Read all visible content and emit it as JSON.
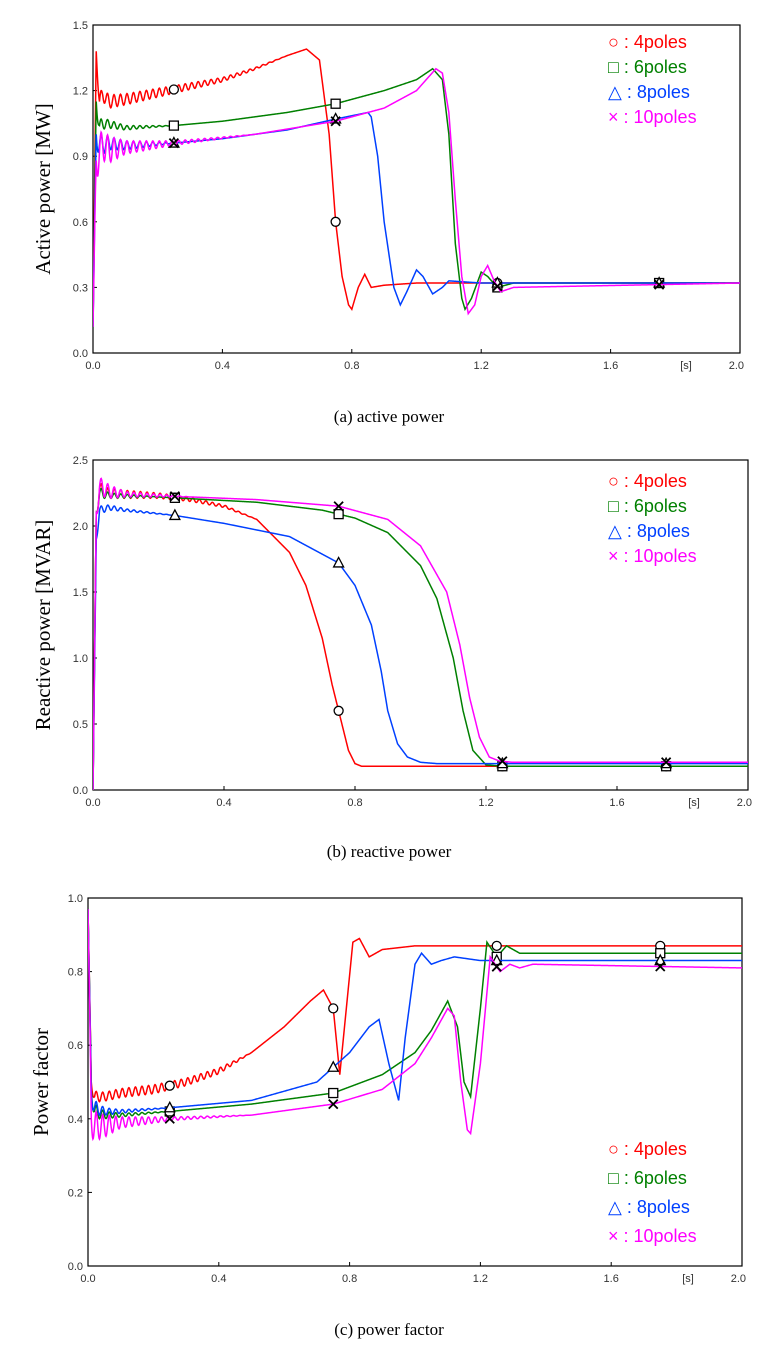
{
  "colors": {
    "4poles": "#ff0000",
    "6poles": "#008000",
    "8poles": "#0040ff",
    "10poles": "#ff00ff"
  },
  "chart_data": [
    {
      "type": "line",
      "caption": "(a) active power",
      "ylabel": "Active power [MW]",
      "xunit": "[s]",
      "xlim": [
        0,
        2.0
      ],
      "ylim": [
        0,
        1.5
      ],
      "xticks": [
        "0.0",
        "0.4",
        "0.8",
        "1.2",
        "1.6",
        "2.0"
      ],
      "yticks": [
        "0.0",
        "0.3",
        "0.6",
        "0.9",
        "1.2",
        "1.5"
      ],
      "legend": [
        "○ : 4poles",
        "□ : 6poles",
        "△ : 8poles",
        "× : 10poles"
      ],
      "series": [
        {
          "name": "4poles",
          "color": "#ff0000",
          "marker": "circle",
          "x": [
            0,
            0.01,
            0.02,
            0.03,
            0.05,
            0.1,
            0.2,
            0.3,
            0.4,
            0.5,
            0.6,
            0.66,
            0.7,
            0.73,
            0.75,
            0.77,
            0.79,
            0.8,
            0.82,
            0.84,
            0.86,
            0.9,
            1.0,
            2.0
          ],
          "y": [
            0.12,
            1.38,
            1.15,
            1.18,
            1.15,
            1.16,
            1.19,
            1.22,
            1.25,
            1.3,
            1.36,
            1.39,
            1.34,
            1.0,
            0.6,
            0.35,
            0.22,
            0.2,
            0.3,
            0.36,
            0.3,
            0.31,
            0.32,
            0.32
          ],
          "osc": [
            0,
            0.03,
            0.04,
            0.03,
            0.03,
            0.025,
            0.02,
            0.015,
            0.01,
            0.005,
            0,
            0,
            0,
            0,
            0,
            0,
            0,
            0,
            0,
            0,
            0,
            0,
            0,
            0
          ],
          "marker_x": [
            0.25,
            0.75,
            1.25,
            1.75
          ]
        },
        {
          "name": "6poles",
          "color": "#008000",
          "marker": "square",
          "x": [
            0,
            0.01,
            0.02,
            0.04,
            0.1,
            0.25,
            0.4,
            0.6,
            0.75,
            0.9,
            1.0,
            1.05,
            1.08,
            1.1,
            1.12,
            1.14,
            1.15,
            1.17,
            1.2,
            1.22,
            1.25,
            1.3,
            2.0
          ],
          "y": [
            0.12,
            1.15,
            1.04,
            1.05,
            1.03,
            1.04,
            1.06,
            1.1,
            1.14,
            1.2,
            1.25,
            1.3,
            1.25,
            1.0,
            0.5,
            0.25,
            0.2,
            0.25,
            0.37,
            0.35,
            0.3,
            0.32,
            0.32
          ],
          "osc": [
            0,
            0.05,
            0.03,
            0.02,
            0.01,
            0,
            0,
            0,
            0,
            0,
            0,
            0,
            0,
            0,
            0,
            0,
            0,
            0,
            0,
            0,
            0,
            0,
            0
          ],
          "marker_x": [
            0.25,
            0.75,
            1.25,
            1.75
          ]
        },
        {
          "name": "8poles",
          "color": "#0040ff",
          "marker": "triangle",
          "x": [
            0,
            0.01,
            0.02,
            0.05,
            0.1,
            0.25,
            0.4,
            0.6,
            0.75,
            0.85,
            0.86,
            0.88,
            0.9,
            0.93,
            0.95,
            0.97,
            1.0,
            1.02,
            1.05,
            1.08,
            1.1,
            1.2,
            2.0
          ],
          "y": [
            0.12,
            1.0,
            0.95,
            0.96,
            0.95,
            0.96,
            0.98,
            1.02,
            1.07,
            1.1,
            1.08,
            0.9,
            0.6,
            0.3,
            0.22,
            0.28,
            0.38,
            0.35,
            0.27,
            0.3,
            0.33,
            0.32,
            0.32
          ],
          "osc": [
            0,
            0.06,
            0.05,
            0.03,
            0.02,
            0,
            0,
            0,
            0,
            0,
            0,
            0,
            0,
            0,
            0,
            0,
            0,
            0,
            0,
            0,
            0,
            0,
            0
          ],
          "marker_x": [
            0.25,
            0.75,
            1.25,
            1.75
          ]
        },
        {
          "name": "10poles",
          "color": "#ff00ff",
          "marker": "x",
          "x": [
            0,
            0.01,
            0.02,
            0.03,
            0.05,
            0.1,
            0.25,
            0.5,
            0.75,
            0.9,
            1.0,
            1.06,
            1.08,
            1.1,
            1.12,
            1.14,
            1.16,
            1.18,
            1.2,
            1.22,
            1.24,
            1.26,
            1.3,
            2.0
          ],
          "y": [
            0.12,
            0.88,
            0.92,
            0.95,
            0.93,
            0.94,
            0.96,
            1.0,
            1.06,
            1.12,
            1.2,
            1.3,
            1.28,
            1.1,
            0.7,
            0.35,
            0.18,
            0.22,
            0.35,
            0.4,
            0.33,
            0.28,
            0.3,
            0.32
          ],
          "osc": [
            0,
            0.1,
            0.08,
            0.07,
            0.06,
            0.03,
            0.01,
            0,
            0,
            0,
            0,
            0,
            0,
            0,
            0,
            0,
            0,
            0,
            0,
            0,
            0,
            0,
            0,
            0
          ],
          "marker_x": [
            0.25,
            0.75,
            1.25,
            1.75
          ]
        }
      ]
    },
    {
      "type": "line",
      "caption": "(b) reactive power",
      "ylabel": "Reactive power [MVAR]",
      "xunit": "[s]",
      "xlim": [
        0,
        2.0
      ],
      "ylim": [
        0,
        2.5
      ],
      "xticks": [
        "0.0",
        "0.4",
        "0.8",
        "1.2",
        "1.6",
        "2.0"
      ],
      "yticks": [
        "0.0",
        "0.5",
        "1.0",
        "1.5",
        "2.0",
        "2.5"
      ],
      "legend": [
        "○ : 4poles",
        "□ : 6poles",
        "△ : 8poles",
        "× : 10poles"
      ],
      "series": [
        {
          "name": "4poles",
          "color": "#ff0000",
          "marker": "circle",
          "x": [
            0,
            0.01,
            0.02,
            0.04,
            0.1,
            0.2,
            0.3,
            0.4,
            0.5,
            0.6,
            0.65,
            0.7,
            0.73,
            0.75,
            0.78,
            0.8,
            0.82,
            0.9,
            2.0
          ],
          "y": [
            0,
            2.1,
            2.28,
            2.25,
            2.24,
            2.23,
            2.2,
            2.15,
            2.05,
            1.8,
            1.55,
            1.15,
            0.8,
            0.6,
            0.3,
            0.2,
            0.18,
            0.18,
            0.18
          ],
          "osc": [
            0,
            0.06,
            0.05,
            0.04,
            0.03,
            0.02,
            0.015,
            0.01,
            0,
            0,
            0,
            0,
            0,
            0,
            0,
            0,
            0,
            0,
            0
          ],
          "marker_x": [
            0.25,
            0.75,
            1.25,
            1.75
          ]
        },
        {
          "name": "6poles",
          "color": "#008000",
          "marker": "square",
          "x": [
            0,
            0.01,
            0.02,
            0.05,
            0.2,
            0.5,
            0.7,
            0.8,
            0.9,
            1.0,
            1.05,
            1.1,
            1.13,
            1.16,
            1.2,
            1.25,
            2.0
          ],
          "y": [
            0,
            2.1,
            2.25,
            2.23,
            2.22,
            2.18,
            2.12,
            2.06,
            1.95,
            1.7,
            1.45,
            1.0,
            0.6,
            0.3,
            0.19,
            0.18,
            0.18
          ],
          "osc": [
            0,
            0.05,
            0.04,
            0.02,
            0,
            0,
            0,
            0,
            0,
            0,
            0,
            0,
            0,
            0,
            0,
            0,
            0
          ],
          "marker_x": [
            0.25,
            0.75,
            1.25,
            1.75
          ]
        },
        {
          "name": "8poles",
          "color": "#0040ff",
          "marker": "triangle",
          "x": [
            0,
            0.01,
            0.02,
            0.05,
            0.1,
            0.25,
            0.4,
            0.6,
            0.75,
            0.8,
            0.85,
            0.88,
            0.9,
            0.93,
            0.96,
            1.0,
            1.05,
            2.0
          ],
          "y": [
            0,
            1.9,
            2.12,
            2.14,
            2.12,
            2.08,
            2.02,
            1.92,
            1.72,
            1.55,
            1.25,
            0.9,
            0.6,
            0.35,
            0.25,
            0.21,
            0.2,
            0.2
          ],
          "osc": [
            0,
            0.04,
            0.03,
            0.02,
            0.01,
            0,
            0,
            0,
            0,
            0,
            0,
            0,
            0,
            0,
            0,
            0,
            0,
            0
          ],
          "marker_x": [
            0.25,
            0.75,
            1.25,
            1.75
          ]
        },
        {
          "name": "10poles",
          "color": "#ff00ff",
          "marker": "x",
          "x": [
            0,
            0.01,
            0.02,
            0.05,
            0.1,
            0.3,
            0.5,
            0.75,
            0.9,
            1.0,
            1.08,
            1.12,
            1.15,
            1.18,
            1.21,
            1.24,
            1.28,
            2.0
          ],
          "y": [
            0,
            2.1,
            2.3,
            2.26,
            2.24,
            2.22,
            2.2,
            2.15,
            2.05,
            1.85,
            1.5,
            1.1,
            0.7,
            0.4,
            0.25,
            0.22,
            0.21,
            0.21
          ],
          "osc": [
            0,
            0.08,
            0.07,
            0.05,
            0.02,
            0,
            0,
            0,
            0,
            0,
            0,
            0,
            0,
            0,
            0,
            0,
            0,
            0
          ],
          "marker_x": [
            0.25,
            0.75,
            1.25,
            1.75
          ]
        }
      ]
    },
    {
      "type": "line",
      "caption": "(c) power factor",
      "ylabel": "Power factor",
      "xunit": "[s]",
      "xlim": [
        0,
        2.0
      ],
      "ylim": [
        0,
        1.0
      ],
      "xticks": [
        "0.0",
        "0.4",
        "0.8",
        "1.2",
        "1.6",
        "2.0"
      ],
      "yticks": [
        "0.0",
        "0.2",
        "0.4",
        "0.6",
        "0.8",
        "1.0"
      ],
      "legend": [
        "○ : 4poles",
        "□ : 6poles",
        "△ : 8poles",
        "× : 10poles"
      ],
      "series": [
        {
          "name": "4poles",
          "color": "#ff0000",
          "marker": "circle",
          "x": [
            0,
            0.01,
            0.02,
            0.05,
            0.1,
            0.2,
            0.3,
            0.4,
            0.5,
            0.6,
            0.68,
            0.72,
            0.75,
            0.77,
            0.79,
            0.81,
            0.83,
            0.86,
            0.9,
            1.0,
            2.0
          ],
          "y": [
            0.97,
            0.5,
            0.46,
            0.46,
            0.47,
            0.48,
            0.5,
            0.53,
            0.58,
            0.65,
            0.72,
            0.75,
            0.7,
            0.52,
            0.7,
            0.88,
            0.89,
            0.84,
            0.86,
            0.87,
            0.87
          ],
          "osc": [
            0,
            0.02,
            0.015,
            0.012,
            0.012,
            0.012,
            0.01,
            0.008,
            0,
            0,
            0,
            0,
            0,
            0,
            0,
            0,
            0,
            0,
            0,
            0,
            0
          ],
          "marker_x": [
            0.25,
            0.75,
            1.25,
            1.75
          ]
        },
        {
          "name": "6poles",
          "color": "#008000",
          "marker": "square",
          "x": [
            0,
            0.01,
            0.02,
            0.05,
            0.1,
            0.25,
            0.5,
            0.75,
            0.9,
            1.0,
            1.05,
            1.1,
            1.13,
            1.15,
            1.17,
            1.2,
            1.22,
            1.25,
            1.28,
            1.32,
            2.0
          ],
          "y": [
            0.97,
            0.48,
            0.42,
            0.41,
            0.41,
            0.42,
            0.44,
            0.47,
            0.52,
            0.58,
            0.64,
            0.72,
            0.65,
            0.5,
            0.46,
            0.7,
            0.88,
            0.84,
            0.87,
            0.85,
            0.85
          ],
          "osc": [
            0,
            0.03,
            0.02,
            0.01,
            0.005,
            0,
            0,
            0,
            0,
            0,
            0,
            0,
            0,
            0,
            0,
            0,
            0,
            0,
            0,
            0,
            0
          ],
          "marker_x": [
            0.25,
            0.75,
            1.25,
            1.75
          ]
        },
        {
          "name": "8poles",
          "color": "#0040ff",
          "marker": "triangle",
          "x": [
            0,
            0.01,
            0.02,
            0.05,
            0.1,
            0.25,
            0.5,
            0.7,
            0.8,
            0.86,
            0.89,
            0.92,
            0.95,
            0.97,
            1.0,
            1.02,
            1.05,
            1.08,
            1.12,
            1.2,
            2.0
          ],
          "y": [
            0.97,
            0.47,
            0.43,
            0.42,
            0.42,
            0.43,
            0.45,
            0.5,
            0.58,
            0.65,
            0.67,
            0.55,
            0.45,
            0.62,
            0.82,
            0.85,
            0.82,
            0.83,
            0.84,
            0.83,
            0.83
          ],
          "osc": [
            0,
            0.03,
            0.02,
            0.01,
            0.005,
            0,
            0,
            0,
            0,
            0,
            0,
            0,
            0,
            0,
            0,
            0,
            0,
            0,
            0,
            0,
            0
          ],
          "marker_x": [
            0.25,
            0.75,
            1.25,
            1.75
          ]
        },
        {
          "name": "10poles",
          "color": "#ff00ff",
          "marker": "x",
          "x": [
            0,
            0.01,
            0.02,
            0.05,
            0.1,
            0.25,
            0.5,
            0.75,
            0.9,
            1.0,
            1.05,
            1.1,
            1.12,
            1.14,
            1.16,
            1.17,
            1.2,
            1.23,
            1.26,
            1.29,
            1.32,
            1.36,
            2.0
          ],
          "y": [
            0.97,
            0.4,
            0.38,
            0.38,
            0.39,
            0.4,
            0.41,
            0.44,
            0.48,
            0.55,
            0.62,
            0.7,
            0.68,
            0.5,
            0.37,
            0.36,
            0.55,
            0.84,
            0.8,
            0.82,
            0.81,
            0.82,
            0.81
          ],
          "osc": [
            0,
            0.05,
            0.04,
            0.03,
            0.015,
            0.005,
            0,
            0,
            0,
            0,
            0,
            0,
            0,
            0,
            0,
            0,
            0,
            0,
            0,
            0,
            0,
            0,
            0
          ],
          "marker_x": [
            0.25,
            0.75,
            1.25,
            1.75
          ]
        }
      ]
    }
  ]
}
